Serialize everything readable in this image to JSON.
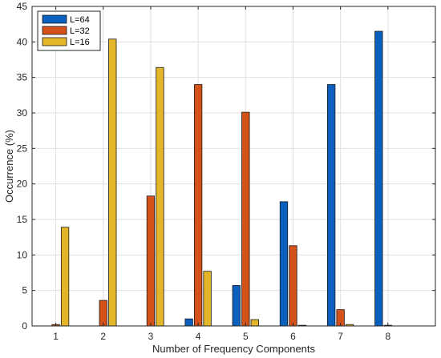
{
  "chart_data": {
    "type": "bar",
    "title": "",
    "xlabel": "Number of Frequency Components",
    "ylabel": "Occurrence (%)",
    "categories": [
      "1",
      "2",
      "3",
      "4",
      "5",
      "6",
      "7",
      "8"
    ],
    "ylim": [
      0,
      45
    ],
    "yticks": [
      "0",
      "5",
      "10",
      "15",
      "20",
      "25",
      "30",
      "35",
      "40",
      "45"
    ],
    "grid": true,
    "legend_position": "top-left",
    "series": [
      {
        "name": "L=64",
        "color": "#0b5fbd",
        "values": [
          0,
          0,
          0,
          1.0,
          5.7,
          17.5,
          34.0,
          41.5
        ]
      },
      {
        "name": "L=32",
        "color": "#d4511a",
        "values": [
          0.2,
          3.6,
          18.3,
          34.0,
          30.1,
          11.3,
          2.3,
          0.1
        ]
      },
      {
        "name": "L=16",
        "color": "#e3b629",
        "values": [
          13.9,
          40.4,
          36.4,
          7.7,
          0.9,
          0.1,
          0.2,
          0
        ]
      }
    ]
  }
}
